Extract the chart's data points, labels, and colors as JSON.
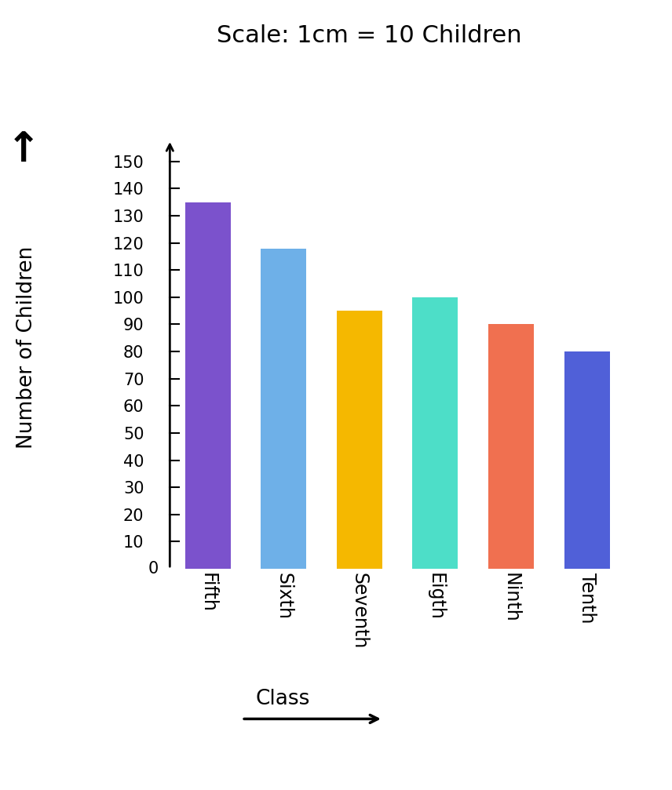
{
  "title": "Scale: 1cm = 10 Children",
  "categories": [
    "Fifth",
    "Sixth",
    "Seventh",
    "Eigth",
    "Ninth",
    "Tenth"
  ],
  "values": [
    135,
    118,
    95,
    100,
    90,
    80
  ],
  "bar_colors": [
    "#7B52CC",
    "#6EB0E8",
    "#F5B800",
    "#4DDEC8",
    "#F07050",
    "#5060D8"
  ],
  "ylabel": "Number of Children",
  "xlabel": "Class",
  "yticks": [
    10,
    20,
    30,
    40,
    50,
    60,
    70,
    80,
    90,
    100,
    110,
    120,
    130,
    140,
    150
  ],
  "ylim": [
    0,
    160
  ],
  "title_fontsize": 22,
  "label_fontsize": 19,
  "tick_fontsize": 15,
  "bar_width": 0.6,
  "background_color": "#ffffff"
}
